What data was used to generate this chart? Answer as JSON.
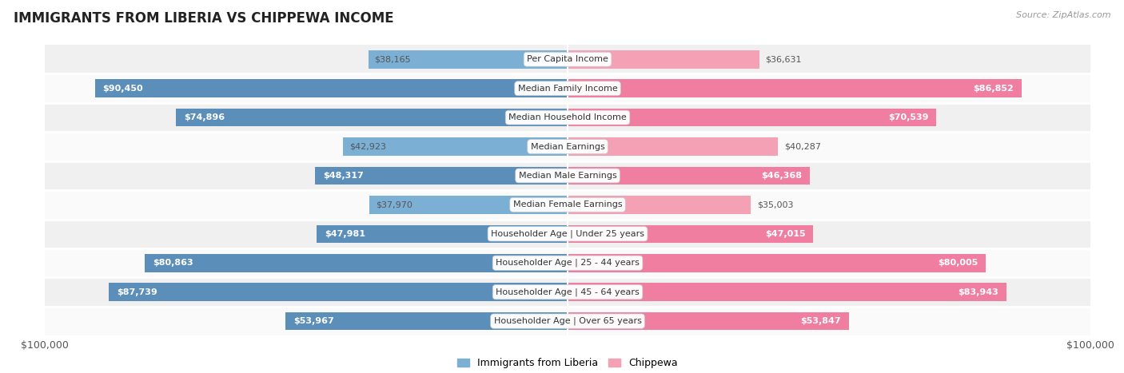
{
  "title": "IMMIGRANTS FROM LIBERIA VS CHIPPEWA INCOME",
  "source": "Source: ZipAtlas.com",
  "categories": [
    "Per Capita Income",
    "Median Family Income",
    "Median Household Income",
    "Median Earnings",
    "Median Male Earnings",
    "Median Female Earnings",
    "Householder Age | Under 25 years",
    "Householder Age | 25 - 44 years",
    "Householder Age | 45 - 64 years",
    "Householder Age | Over 65 years"
  ],
  "liberia_values": [
    38165,
    90450,
    74896,
    42923,
    48317,
    37970,
    47981,
    80863,
    87739,
    53967
  ],
  "chippewa_values": [
    36631,
    86852,
    70539,
    40287,
    46368,
    35003,
    47015,
    80005,
    83943,
    53847
  ],
  "liberia_labels": [
    "$38,165",
    "$90,450",
    "$74,896",
    "$42,923",
    "$48,317",
    "$37,970",
    "$47,981",
    "$80,863",
    "$87,739",
    "$53,967"
  ],
  "chippewa_labels": [
    "$36,631",
    "$86,852",
    "$70,539",
    "$40,287",
    "$46,368",
    "$35,003",
    "$47,015",
    "$80,005",
    "$83,943",
    "$53,847"
  ],
  "max_value": 100000,
  "liberia_color": "#7BAFD4",
  "chippewa_color": "#F4A0B5",
  "chippewa_color_sat": "#F07EA0",
  "liberia_color_sat": "#5B8FBA",
  "row_colors": [
    "#f0f0f0",
    "#fafafa"
  ],
  "xlabel_left": "$100,000",
  "xlabel_right": "$100,000",
  "legend_liberia": "Immigrants from Liberia",
  "legend_chippewa": "Chippewa",
  "inside_label_threshold": 0.45
}
